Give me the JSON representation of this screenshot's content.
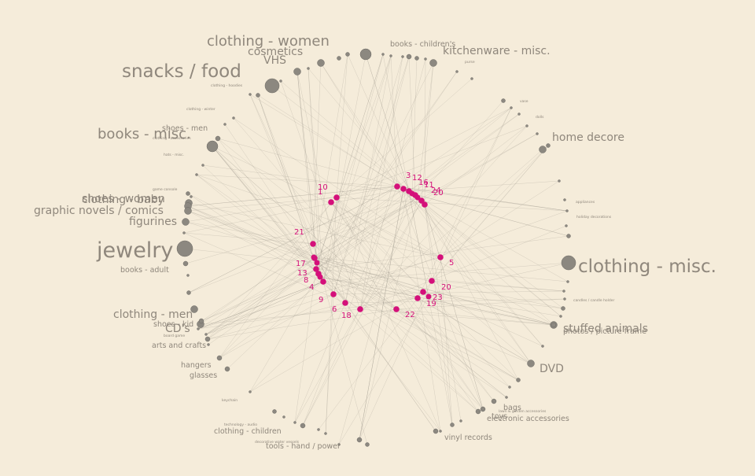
{
  "chart_data": {
    "type": "network",
    "title": "",
    "colors": {
      "background": "#f5ecda",
      "category_text": "#8f877c",
      "category_dot": "#8c8880",
      "node": "#d4107a",
      "edge": "#9c9589"
    },
    "categories": [
      {
        "label": "clothing - women",
        "weight": 4
      },
      {
        "label": "cosmetics",
        "weight": 3
      },
      {
        "label": "VHS",
        "weight": 3
      },
      {
        "label": "snacks / food",
        "weight": 5
      },
      {
        "label": "clothing - hoodies",
        "weight": 1
      },
      {
        "label": "clothing - winter",
        "weight": 1
      },
      {
        "label": "shoes - men",
        "weight": 2
      },
      {
        "label": "clothing - accessories",
        "weight": 1
      },
      {
        "label": "books - misc.",
        "weight": 4
      },
      {
        "label": "hats - misc.",
        "weight": 1
      },
      {
        "label": "game console",
        "weight": 1
      },
      {
        "label": "clothing - baby",
        "weight": 3
      },
      {
        "label": "shoes - women",
        "weight": 3
      },
      {
        "label": "graphic novels / comics",
        "weight": 3
      },
      {
        "label": "figurines",
        "weight": 3
      },
      {
        "label": "jewelry",
        "weight": 6
      },
      {
        "label": "books - adult",
        "weight": 2
      },
      {
        "label": "clothing - men",
        "weight": 3
      },
      {
        "label": "CD's",
        "weight": 3
      },
      {
        "label": "shoes - kid",
        "weight": 2
      },
      {
        "label": "board game",
        "weight": 1
      },
      {
        "label": "arts and crafts",
        "weight": 2
      },
      {
        "label": "hangers",
        "weight": 2
      },
      {
        "label": "glasses",
        "weight": 2
      },
      {
        "label": "keychain",
        "weight": 1
      },
      {
        "label": "technology - audio",
        "weight": 1
      },
      {
        "label": "clothing - children",
        "weight": 2
      },
      {
        "label": "decorative water vessels",
        "weight": 1
      },
      {
        "label": "tools - hand / power",
        "weight": 2
      },
      {
        "label": "vinyl records",
        "weight": 2
      },
      {
        "label": "electronic accessories",
        "weight": 2
      },
      {
        "label": "toys",
        "weight": 2
      },
      {
        "label": "bags",
        "weight": 2
      },
      {
        "label": "lawn & garden accessories",
        "weight": 1
      },
      {
        "label": "DVD",
        "weight": 3
      },
      {
        "label": "stuffed animals",
        "weight": 3
      },
      {
        "label": "photos / picture frame",
        "weight": 2
      },
      {
        "label": "candles / candle holder",
        "weight": 1
      },
      {
        "label": "clothing - misc.",
        "weight": 5
      },
      {
        "label": "holiday decorations",
        "weight": 1
      },
      {
        "label": "appliances",
        "weight": 1
      },
      {
        "label": "home decore",
        "weight": 3
      },
      {
        "label": "dolls",
        "weight": 1
      },
      {
        "label": "vase",
        "weight": 1
      },
      {
        "label": "purse",
        "weight": 1
      },
      {
        "label": "kitchenware - misc.",
        "weight": 3
      },
      {
        "label": "books - children's",
        "weight": 2
      }
    ],
    "nodes": [
      {
        "label": "10"
      },
      {
        "label": "1"
      },
      {
        "label": "3"
      },
      {
        "label": "12"
      },
      {
        "label": "16"
      },
      {
        "label": "11"
      },
      {
        "label": "24"
      },
      {
        "label": "20"
      },
      {
        "label": "21"
      },
      {
        "label": "17"
      },
      {
        "label": "13"
      },
      {
        "label": "8"
      },
      {
        "label": "4"
      },
      {
        "label": "9"
      },
      {
        "label": "6"
      },
      {
        "label": "18"
      },
      {
        "label": "22"
      },
      {
        "label": "19"
      },
      {
        "label": "23"
      },
      {
        "label": "20"
      },
      {
        "label": "5"
      }
    ]
  }
}
